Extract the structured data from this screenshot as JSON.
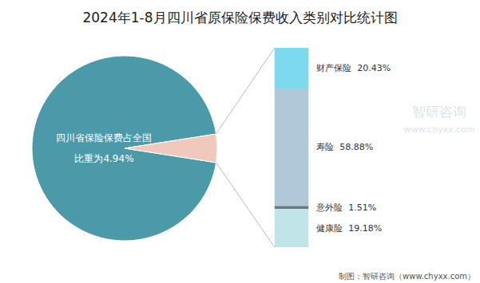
{
  "chart_data": [
    {
      "type": "pie",
      "title": "2024年1-8月四川省原保险保费收入类别对比统计图",
      "categories": [
        null,
        null
      ],
      "values": [
        95.06,
        4.94
      ],
      "colors": [
        "#4a9aaa",
        "#f0c8bc"
      ],
      "annotations": [
        "四川省保险保费占全国",
        "比重为4.94%"
      ]
    },
    {
      "type": "bar",
      "stacked": true,
      "categories": [
        null
      ],
      "series": [
        {
          "name": "健康险",
          "color": "#c0e4e8",
          "values": [
            19.18
          ],
          "value_labels": [
            "健康险  19.18%"
          ]
        },
        {
          "name": "意外险",
          "color": "#6a7880",
          "values": [
            1.51
          ],
          "value_labels": [
            "意外险  1.51%"
          ]
        },
        {
          "name": "寿险",
          "color": "#b0c8d8",
          "values": [
            58.88
          ],
          "value_labels": [
            "寿险  58.88%"
          ]
        },
        {
          "name": "财产保险",
          "color": "#7dd9ef",
          "values": [
            20.43
          ],
          "value_labels": [
            "财产保险  20.43%"
          ]
        }
      ],
      "ylim": [
        0,
        100
      ],
      "tick_labels": false,
      "data_labels": true,
      "annotations": [
        "智研咨询",
        "www.chyxx.com",
        "制图：智研咨询（www.chyxx.com）"
      ]
    }
  ]
}
